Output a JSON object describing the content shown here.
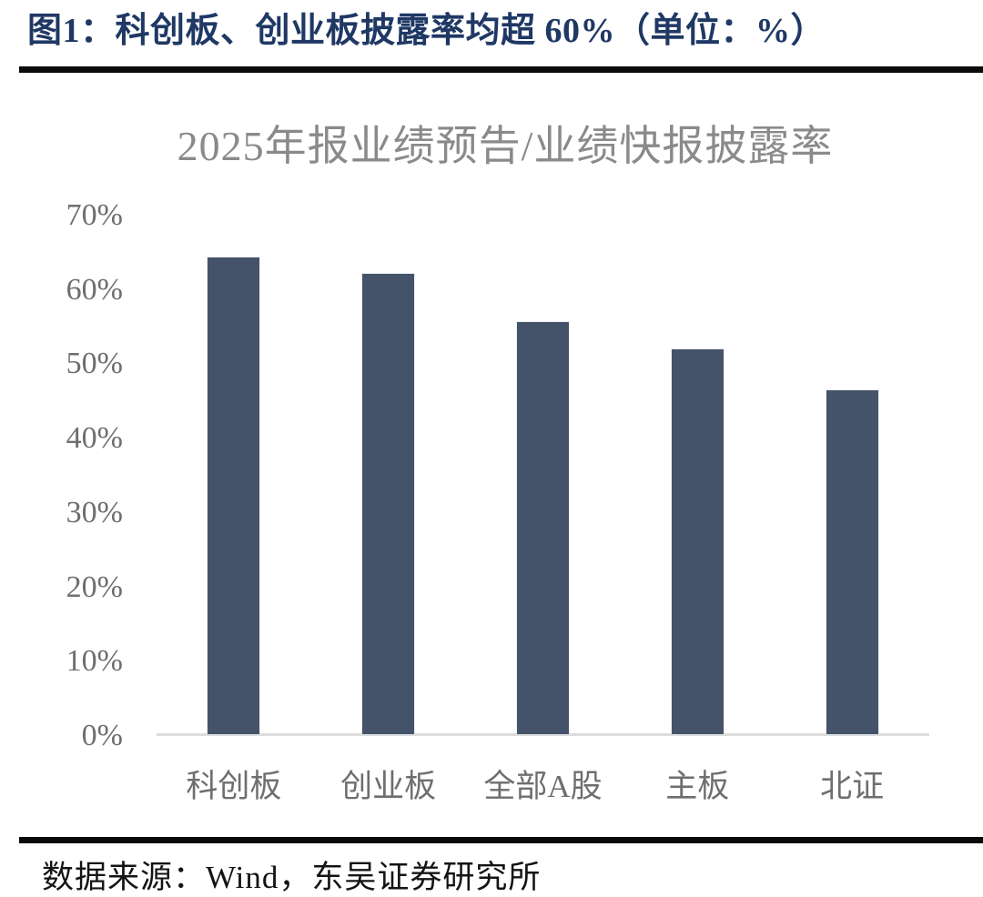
{
  "figure": {
    "title": "图1：科创板、创业板披露率均超 60%（单位：%）",
    "source": "数据来源：Wind，东吴证券研究所"
  },
  "chart_data": {
    "type": "bar",
    "title": "2025年报业绩预告/业绩快报披露率",
    "categories": [
      "科创板",
      "创业板",
      "全部A股",
      "主板",
      "北证"
    ],
    "values": [
      64.1,
      61.9,
      55.5,
      51.8,
      46.3
    ],
    "unit": "%",
    "xlabel": "",
    "ylabel": "",
    "ylim": [
      0,
      70
    ],
    "ytick_step": 10,
    "ytick_labels": [
      "0%",
      "10%",
      "20%",
      "30%",
      "40%",
      "50%",
      "60%",
      "70%"
    ],
    "grid": false,
    "legend_position": "none",
    "bar_color": "#45536A"
  },
  "colors": {
    "header_title": "#1F3864",
    "divider_rule": "#0A0A0A",
    "chart_title": "#8A8A8A",
    "axis_label": "#6E6E6E",
    "baseline": "#DCDCDC",
    "bar": "#45536A",
    "source_text": "#141414"
  }
}
